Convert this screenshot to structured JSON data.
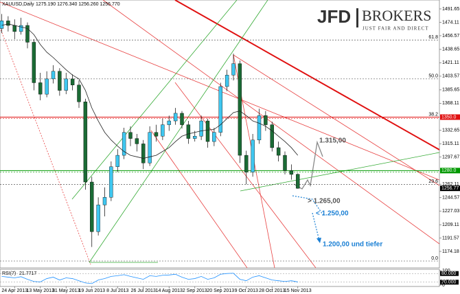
{
  "chart_data": {
    "type": "candlestick",
    "symbol": "XAUUSD,Daily",
    "header_values": "1275.190 1276.340 1256.260 1256.770",
    "categories": [
      null,
      null,
      "24 Apr 2013",
      null,
      null,
      null,
      "13 May 2013",
      null,
      null,
      null,
      "31 May 2013",
      null,
      null,
      null,
      "19 Jun 2013",
      null,
      null,
      null,
      "8 Jul 2013",
      null,
      null,
      null,
      "26 Jul 2013",
      null,
      null,
      null,
      "14 Aug 2013",
      null,
      null,
      null,
      "2 Sep 2013",
      null,
      null,
      null,
      "20 Sep 2013",
      null,
      null,
      null,
      "9 Oct 2013",
      null,
      null,
      null,
      "28 Oct 2013",
      null,
      null,
      null,
      "15 Nov 2013"
    ],
    "open": [
      1466,
      1476,
      1470,
      1462,
      1470,
      1448,
      1395,
      1380,
      1400,
      1410,
      1385,
      1400,
      1392,
      1370,
      1265,
      1200,
      1235,
      1245,
      1285,
      1300,
      1330,
      1322,
      1315,
      1290,
      1330,
      1325,
      1340,
      1345,
      1355,
      1340,
      1322,
      1325,
      1345,
      1318,
      1330,
      1390,
      1405,
      1420,
      1300,
      1278,
      1320,
      1352,
      1340,
      1310,
      1300,
      1280,
      1275.19
    ],
    "high": [
      1485,
      1482,
      1478,
      1480,
      1474,
      1452,
      1408,
      1410,
      1418,
      1414,
      1408,
      1406,
      1398,
      1374,
      1272,
      1245,
      1258,
      1292,
      1308,
      1336,
      1338,
      1328,
      1320,
      1338,
      1340,
      1348,
      1352,
      1362,
      1358,
      1345,
      1332,
      1352,
      1348,
      1336,
      1395,
      1412,
      1433,
      1424,
      1306,
      1328,
      1361,
      1358,
      1344,
      1318,
      1305,
      1288,
      1276.34
    ],
    "low": [
      1460,
      1462,
      1452,
      1458,
      1440,
      1385,
      1372,
      1376,
      1394,
      1378,
      1380,
      1385,
      1362,
      1255,
      1180,
      1195,
      1220,
      1240,
      1278,
      1295,
      1312,
      1305,
      1282,
      1286,
      1318,
      1320,
      1332,
      1340,
      1335,
      1315,
      1318,
      1320,
      1310,
      1312,
      1325,
      1384,
      1398,
      1290,
      1262,
      1272,
      1315,
      1332,
      1305,
      1292,
      1275,
      1268,
      1256.26
    ],
    "close": [
      1476,
      1470,
      1462,
      1470,
      1448,
      1395,
      1380,
      1400,
      1410,
      1385,
      1400,
      1392,
      1370,
      1265,
      1200,
      1235,
      1245,
      1285,
      1300,
      1330,
      1322,
      1315,
      1290,
      1330,
      1325,
      1340,
      1345,
      1355,
      1340,
      1322,
      1325,
      1345,
      1318,
      1330,
      1390,
      1405,
      1420,
      1300,
      1278,
      1320,
      1352,
      1340,
      1310,
      1300,
      1280,
      1275,
      1256.77
    ],
    "up_color": "#3fc7f0",
    "down_color": "#1b6b35",
    "moving_average": {
      "color": "#222222",
      "values": [
        1470,
        1472,
        1470,
        1468,
        1466,
        1458,
        1445,
        1435,
        1428,
        1420,
        1412,
        1405,
        1400,
        1385,
        1362,
        1345,
        1330,
        1320,
        1312,
        1305,
        1300,
        1298,
        1296,
        1298,
        1300,
        1305,
        1310,
        1318,
        1325,
        1328,
        1330,
        1332,
        1333,
        1334,
        1340,
        1348,
        1356,
        1358,
        1352,
        1345,
        1342,
        1338,
        1332,
        1325,
        1318,
        1310,
        1300
      ]
    },
    "ylim": [
      1152.6,
      1503.3
    ],
    "yticks": [
      1491.65,
      1474.11,
      1456.57,
      1438.65,
      1421.11,
      1403.57,
      1385.65,
      1368.11,
      1332.65,
      1315.11,
      1297.67,
      1262.11,
      1244.57,
      1227.03,
      1209.11,
      1191.57,
      1174.18
    ],
    "grid": false,
    "levels": [
      {
        "value": 1350,
        "label": "1350.0",
        "color": "#e01010"
      },
      {
        "value": 1280,
        "label": "1280.0",
        "color": "#009900"
      },
      {
        "value": 1256.77,
        "label": "1256.77",
        "color": "#000000"
      }
    ],
    "fib_levels": [
      {
        "value": 1451,
        "label": "61.8"
      },
      {
        "value": 1400,
        "label": "50.0"
      },
      {
        "value": 1350,
        "label": "38.2"
      },
      {
        "value": 1262,
        "label": "23.6"
      },
      {
        "value": 1161.6,
        "label": "0.0"
      }
    ],
    "annotations": [
      {
        "text": "1.315,00",
        "color": "#555555"
      },
      {
        "text": "> 1.265,00",
        "color": "#555555"
      },
      {
        "text": "< 1.250,00",
        "color": "#1a7fd4"
      },
      {
        "text": "1.200,00 und tiefer",
        "color": "#1a7fd4"
      }
    ],
    "rsi": {
      "name": "RSI(7)",
      "color": "#1e90ff",
      "values": [
        60,
        55,
        50,
        58,
        40,
        25,
        22,
        45,
        55,
        35,
        50,
        45,
        30,
        15,
        10,
        35,
        45,
        60,
        65,
        72,
        60,
        50,
        40,
        65,
        60,
        68,
        70,
        75,
        55,
        40,
        45,
        60,
        40,
        50,
        75,
        80,
        82,
        40,
        30,
        55,
        65,
        50,
        35,
        30,
        25,
        30,
        21.7717
      ],
      "ylim": [
        0,
        100
      ],
      "yticks": [
        100,
        {
          "value": 80,
          "label": "80.000"
        },
        {
          "value": 20,
          "label": "20.000"
        },
        0
      ]
    }
  },
  "logo": {
    "left": "JFD",
    "right": "BROKERS",
    "tagline": "JUST FAIR AND DIRECT"
  }
}
